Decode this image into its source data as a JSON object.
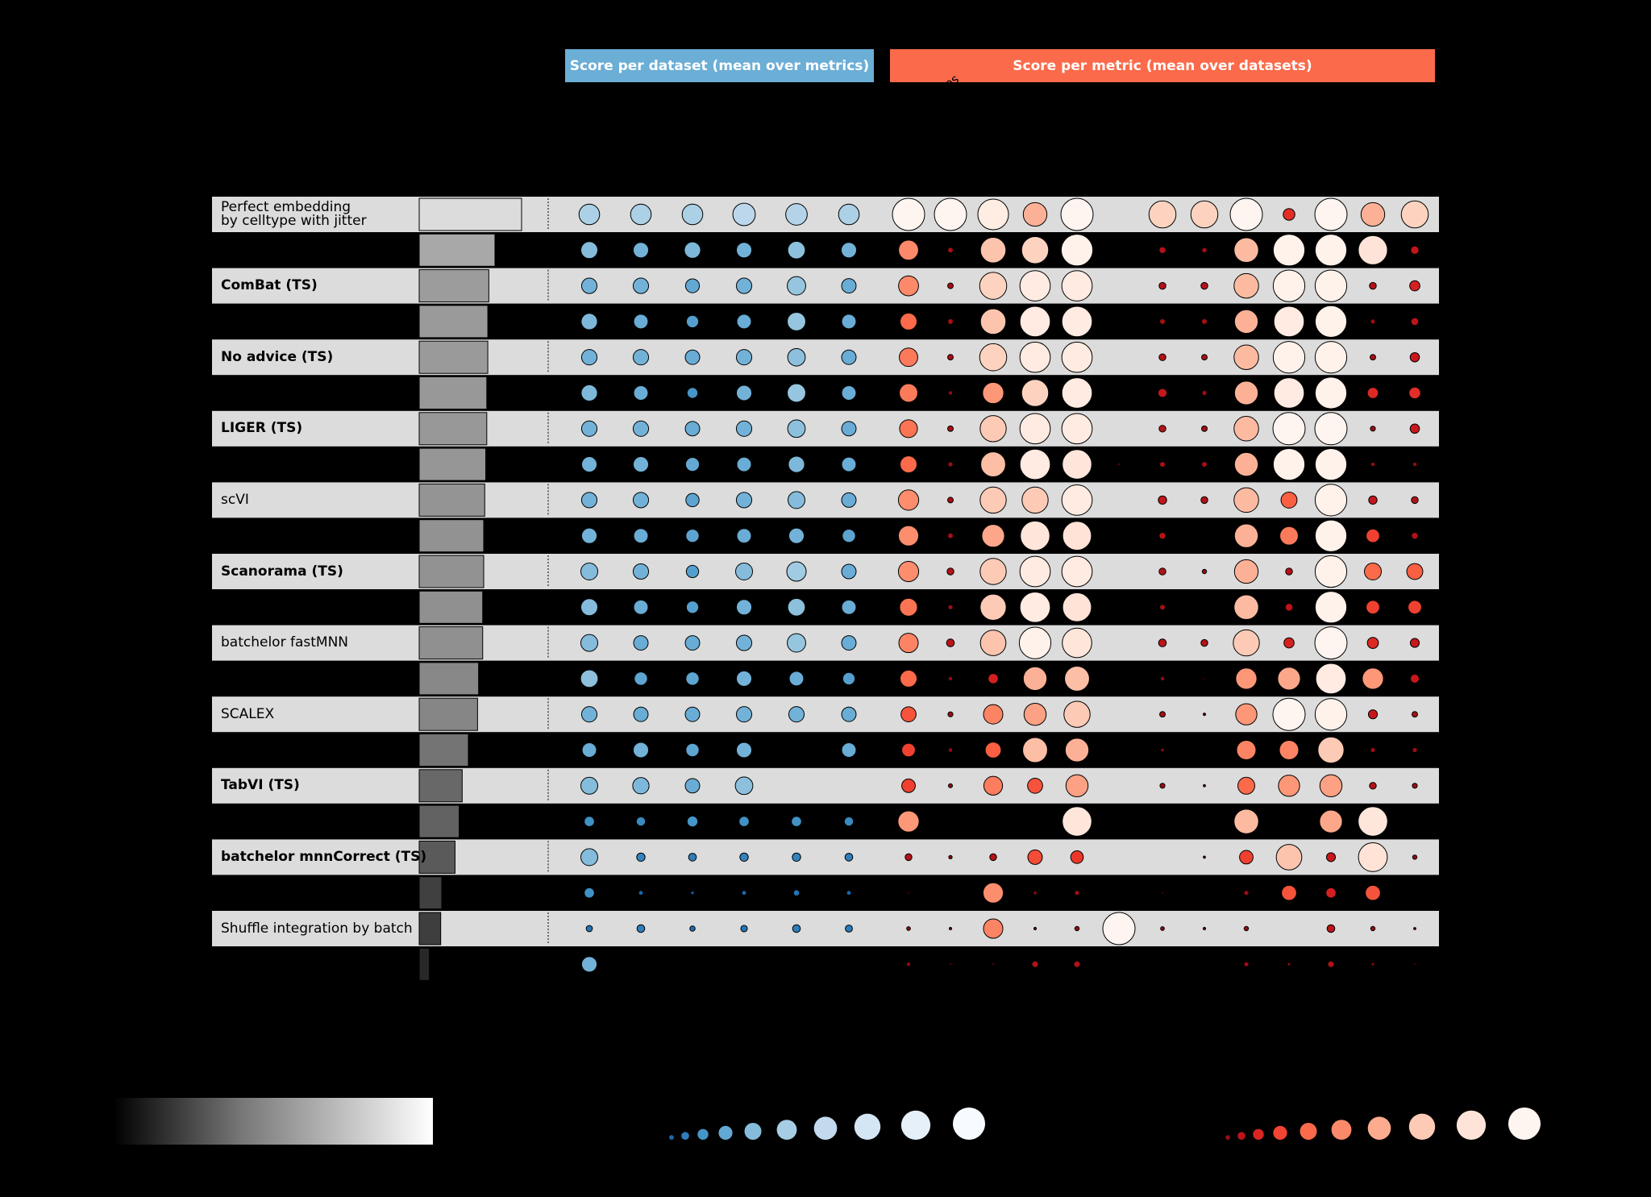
{
  "headers": {
    "dataset_group": "Score per dataset (mean over metrics)",
    "metric_group": "Score per metric (mean over datasets)",
    "rotated_fragment": "es"
  },
  "colors": {
    "dataset_group": "#6baed6",
    "metric_group": "#fb6a4a",
    "row_band": "#dcdcdc"
  },
  "chart_data": {
    "type": "dot-table",
    "methods": [
      {
        "label": "Perfect embedding\nby celltype with jitter",
        "bold": false,
        "overall": 1.0,
        "datasets": [
          0.62,
          0.62,
          0.62,
          0.68,
          0.65,
          0.62
        ],
        "metrics": [
          1,
          1,
          0.95,
          0.72,
          1,
          null,
          0.83,
          0.83,
          1,
          0.33,
          1,
          0.72,
          0.83
        ]
      },
      {
        "label": "",
        "bold": false,
        "overall": 0.74,
        "datasets": [
          0.5,
          0.45,
          0.48,
          0.45,
          0.52,
          0.45
        ],
        "metrics": [
          0.6,
          0.13,
          0.78,
          0.83,
          0.98,
          null,
          0.17,
          0.12,
          0.75,
          0.98,
          0.98,
          0.9,
          0.22
        ]
      },
      {
        "label": "ComBat (TS)",
        "bold": true,
        "overall": 0.68,
        "datasets": [
          0.45,
          0.45,
          0.4,
          0.45,
          0.55,
          0.42
        ],
        "metrics": [
          0.6,
          0.13,
          0.83,
          0.94,
          0.94,
          null,
          0.17,
          0.17,
          0.75,
          0.98,
          0.98,
          0.17,
          0.28
        ]
      },
      {
        "label": "",
        "bold": false,
        "overall": 0.67,
        "datasets": [
          0.48,
          0.42,
          0.35,
          0.42,
          0.55,
          0.42
        ],
        "metrics": [
          0.5,
          0.13,
          0.78,
          0.94,
          0.94,
          null,
          0.13,
          0.13,
          0.72,
          0.94,
          0.98,
          0.11,
          0.2
        ]
      },
      {
        "label": "No advice (TS)",
        "bold": true,
        "overall": 0.67,
        "datasets": [
          0.45,
          0.45,
          0.42,
          0.45,
          0.52,
          0.42
        ],
        "metrics": [
          0.55,
          0.13,
          0.83,
          0.94,
          0.94,
          null,
          0.17,
          0.13,
          0.75,
          0.98,
          0.98,
          0.13,
          0.25
        ]
      },
      {
        "label": "",
        "bold": false,
        "overall": 0.66,
        "datasets": [
          0.48,
          0.42,
          0.3,
          0.45,
          0.55,
          0.42
        ],
        "metrics": [
          0.55,
          0.09,
          0.64,
          0.83,
          0.94,
          null,
          0.24,
          0.11,
          0.72,
          0.94,
          0.98,
          0.31,
          0.33
        ]
      },
      {
        "label": "LIGER (TS)",
        "bold": true,
        "overall": 0.66,
        "datasets": [
          0.45,
          0.45,
          0.42,
          0.45,
          0.52,
          0.42
        ],
        "metrics": [
          0.53,
          0.13,
          0.8,
          0.94,
          0.94,
          null,
          0.17,
          0.13,
          0.75,
          1,
          1,
          0.11,
          0.25
        ]
      },
      {
        "label": "",
        "bold": false,
        "overall": 0.65,
        "datasets": [
          0.45,
          0.45,
          0.4,
          0.42,
          0.48,
          0.42
        ],
        "metrics": [
          0.5,
          0.11,
          0.76,
          0.94,
          0.91,
          0.03,
          0.13,
          0.13,
          0.72,
          0.98,
          0.98,
          0.09,
          0.09
        ]
      },
      {
        "label": "scVI",
        "bold": false,
        "overall": 0.64,
        "datasets": [
          0.45,
          0.45,
          0.38,
          0.45,
          0.5,
          0.42
        ],
        "metrics": [
          0.61,
          0.13,
          0.8,
          0.8,
          0.94,
          null,
          0.22,
          0.17,
          0.75,
          0.47,
          0.98,
          0.22,
          0.17
        ]
      },
      {
        "label": "",
        "bold": false,
        "overall": 0.63,
        "datasets": [
          0.45,
          0.42,
          0.38,
          0.42,
          0.45,
          0.38
        ],
        "metrics": [
          0.61,
          0.13,
          0.69,
          0.91,
          0.89,
          null,
          0.17,
          null,
          0.72,
          0.55,
          0.98,
          0.39,
          0.17
        ]
      },
      {
        "label": "Scanorama (TS)",
        "bold": true,
        "overall": 0.63,
        "datasets": [
          0.5,
          0.45,
          0.35,
          0.5,
          0.58,
          0.42
        ],
        "metrics": [
          0.61,
          0.17,
          0.8,
          0.94,
          0.94,
          null,
          0.17,
          0.09,
          0.72,
          0.17,
          0.98,
          0.5,
          0.47
        ]
      },
      {
        "label": "",
        "bold": false,
        "overall": 0.62,
        "datasets": [
          0.5,
          0.42,
          0.35,
          0.45,
          0.52,
          0.42
        ],
        "metrics": [
          0.53,
          0.11,
          0.8,
          0.94,
          0.89,
          null,
          0.13,
          null,
          0.75,
          0.2,
          0.98,
          0.39,
          0.39
        ]
      },
      {
        "label": "batchelor fastMNN",
        "bold": false,
        "overall": 0.62,
        "datasets": [
          0.5,
          0.42,
          0.42,
          0.45,
          0.55,
          0.42
        ],
        "metrics": [
          0.58,
          0.2,
          0.78,
          0.98,
          0.91,
          null,
          0.2,
          0.17,
          0.8,
          0.28,
          1,
          0.31,
          0.24
        ]
      },
      {
        "label": "",
        "bold": false,
        "overall": 0.58,
        "datasets": [
          0.52,
          0.38,
          0.38,
          0.45,
          0.42,
          0.35
        ],
        "metrics": [
          0.5,
          0.09,
          0.28,
          0.72,
          0.76,
          null,
          0.09,
          0.02,
          0.64,
          0.69,
          0.94,
          0.64,
          0.24
        ]
      },
      {
        "label": "SCALEX",
        "bold": false,
        "overall": 0.57,
        "datasets": [
          0.45,
          0.42,
          0.42,
          0.45,
          0.45,
          0.42
        ],
        "metrics": [
          0.44,
          0.11,
          0.58,
          0.67,
          0.8,
          null,
          0.13,
          0.03,
          0.64,
          1,
          0.98,
          0.24,
          0.13
        ]
      },
      {
        "label": "",
        "bold": false,
        "overall": 0.48,
        "datasets": [
          0.42,
          0.45,
          0.38,
          0.45,
          null,
          0.42
        ],
        "metrics": [
          0.39,
          0.09,
          0.47,
          0.76,
          0.72,
          null,
          0.07,
          null,
          0.58,
          0.58,
          0.8,
          0.11,
          0.11
        ]
      },
      {
        "label": "TabVI (TS)",
        "bold": true,
        "overall": 0.42,
        "datasets": [
          0.5,
          0.48,
          0.42,
          0.52,
          null,
          null
        ],
        "metrics": [
          0.39,
          0.08,
          0.56,
          0.44,
          0.67,
          null,
          0.11,
          0.02,
          0.5,
          0.64,
          0.67,
          0.17,
          0.11
        ]
      },
      {
        "label": "",
        "bold": false,
        "overall": 0.39,
        "datasets": [
          0.28,
          0.25,
          0.3,
          0.28,
          0.28,
          0.25
        ],
        "metrics": [
          0.64,
          null,
          null,
          null,
          0.91,
          null,
          null,
          null,
          0.75,
          null,
          0.69,
          0.91,
          null
        ]
      },
      {
        "label": "batchelor mnnCorrect (TS)",
        "bold": true,
        "overall": 0.35,
        "datasets": [
          0.5,
          0.22,
          0.2,
          0.22,
          0.22,
          0.2
        ],
        "metrics": [
          0.17,
          0.06,
          0.17,
          0.42,
          0.36,
          null,
          null,
          0.02,
          0.39,
          0.78,
          0.24,
          0.89,
          0.09
        ]
      },
      {
        "label": "",
        "bold": false,
        "overall": 0.22,
        "datasets": [
          0.28,
          0.1,
          0.06,
          0.1,
          0.15,
          0.1
        ],
        "metrics": [
          0.02,
          null,
          0.61,
          0.07,
          0.11,
          null,
          0.02,
          null,
          0.11,
          0.44,
          0.28,
          0.44,
          null
        ]
      },
      {
        "label": "Shuffle integration by batch",
        "bold": false,
        "overall": 0.21,
        "datasets": [
          0.15,
          0.2,
          0.12,
          0.16,
          0.2,
          0.18
        ],
        "metrics": [
          0.07,
          0.03,
          0.58,
          0.03,
          0.09,
          1,
          0.07,
          0.03,
          0.09,
          null,
          0.2,
          0.09,
          0.02
        ]
      },
      {
        "label": "",
        "bold": false,
        "overall": 0.1,
        "datasets": [
          0.45,
          null,
          null,
          null,
          null,
          null
        ],
        "metrics": [
          0.09,
          0.03,
          0.03,
          0.16,
          0.16,
          null,
          null,
          null,
          0.11,
          0.06,
          0.16,
          0.06,
          0.02
        ]
      }
    ],
    "legend": {
      "overall_colorbar": "grayscale low-to-high",
      "dot_sizes": [
        0.1,
        0.2,
        0.3,
        0.4,
        0.5,
        0.6,
        0.7,
        0.8,
        0.9,
        1.0
      ]
    }
  }
}
